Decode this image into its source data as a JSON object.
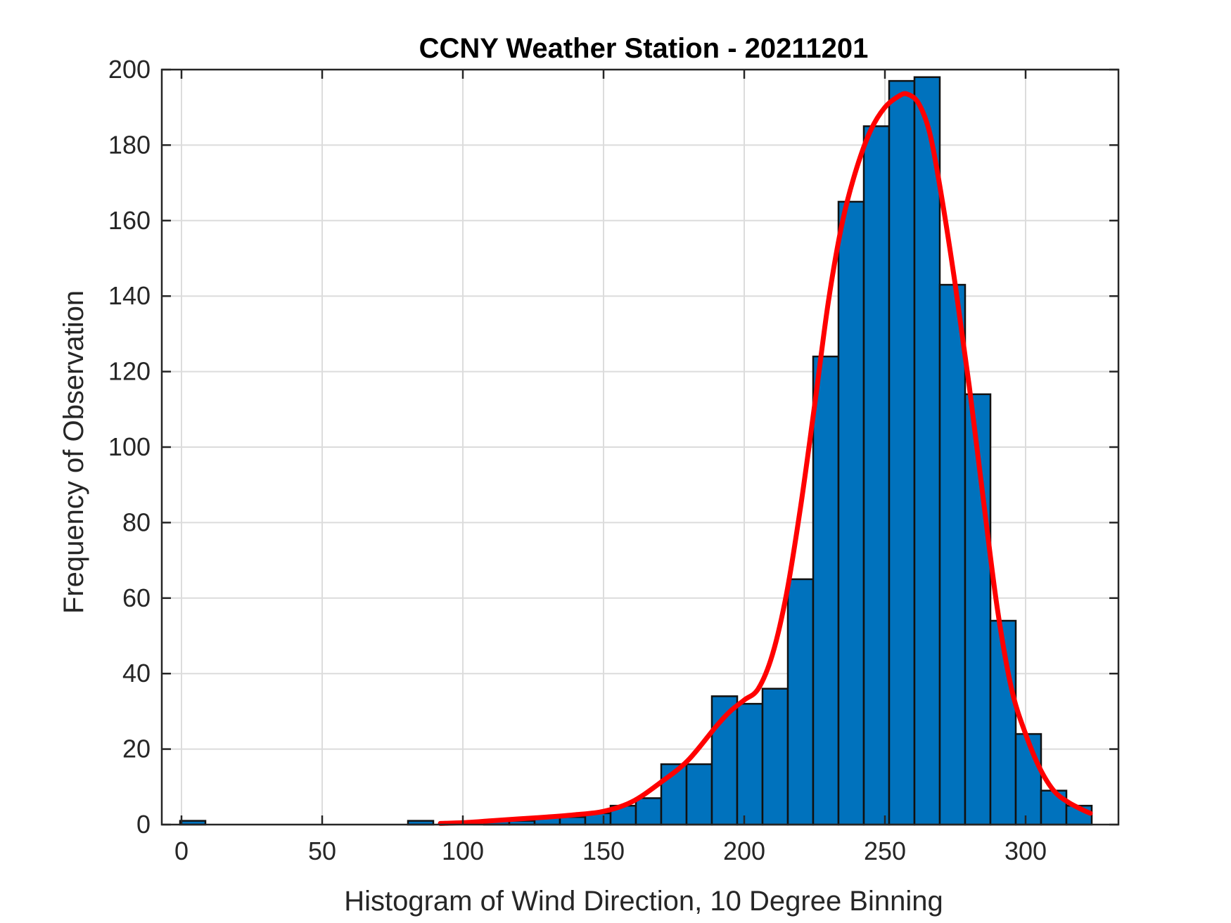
{
  "chart_data": {
    "type": "bar",
    "title": "CCNY Weather Station - 20211201",
    "xlabel": "Histogram of Wind Direction, 10 Degree Binning",
    "ylabel": "Frequency of Observation",
    "xlim": [
      -7,
      333
    ],
    "ylim": [
      0,
      200
    ],
    "xticks": [
      0,
      50,
      100,
      150,
      200,
      250,
      300
    ],
    "yticks": [
      0,
      20,
      40,
      60,
      80,
      100,
      120,
      140,
      160,
      180,
      200
    ],
    "grid": true,
    "bin_width": 9,
    "bins": [
      {
        "center": 4,
        "count": 1
      },
      {
        "center": 85,
        "count": 1
      },
      {
        "center": 94,
        "count": 0
      },
      {
        "center": 103,
        "count": 0
      },
      {
        "center": 112,
        "count": 1
      },
      {
        "center": 121,
        "count": 1
      },
      {
        "center": 130,
        "count": 2
      },
      {
        "center": 139,
        "count": 2
      },
      {
        "center": 148,
        "count": 3
      },
      {
        "center": 157,
        "count": 5
      },
      {
        "center": 166,
        "count": 7
      },
      {
        "center": 175,
        "count": 16
      },
      {
        "center": 184,
        "count": 16
      },
      {
        "center": 193,
        "count": 34
      },
      {
        "center": 202,
        "count": 32
      },
      {
        "center": 211,
        "count": 36
      },
      {
        "center": 220,
        "count": 65
      },
      {
        "center": 229,
        "count": 124
      },
      {
        "center": 238,
        "count": 165
      },
      {
        "center": 247,
        "count": 185
      },
      {
        "center": 256,
        "count": 197
      },
      {
        "center": 265,
        "count": 198
      },
      {
        "center": 274,
        "count": 143
      },
      {
        "center": 283,
        "count": 114
      },
      {
        "center": 292,
        "count": 54
      },
      {
        "center": 301,
        "count": 24
      },
      {
        "center": 310,
        "count": 9
      },
      {
        "center": 319,
        "count": 5
      }
    ],
    "fit_curve": {
      "x": [
        92,
        100,
        110,
        120,
        130,
        140,
        150,
        160,
        170,
        180,
        190,
        195,
        200,
        205,
        210,
        215,
        220,
        225,
        230,
        235,
        240,
        245,
        250,
        255,
        258,
        262,
        266,
        270,
        275,
        280,
        285,
        290,
        295,
        300,
        305,
        310,
        315,
        320,
        323
      ],
      "y": [
        0.3,
        0.5,
        1,
        1.5,
        2,
        2.6,
        3.5,
        6,
        11,
        17,
        26,
        30,
        33,
        36,
        45,
        61,
        84,
        111,
        139,
        160,
        174,
        184,
        190,
        193,
        193.5,
        191,
        183,
        167,
        143,
        116,
        86,
        57,
        36,
        24,
        15,
        9,
        6,
        4,
        3
      ]
    },
    "colors": {
      "bar_fill": "#0072bd",
      "curve": "#ff0000"
    }
  }
}
